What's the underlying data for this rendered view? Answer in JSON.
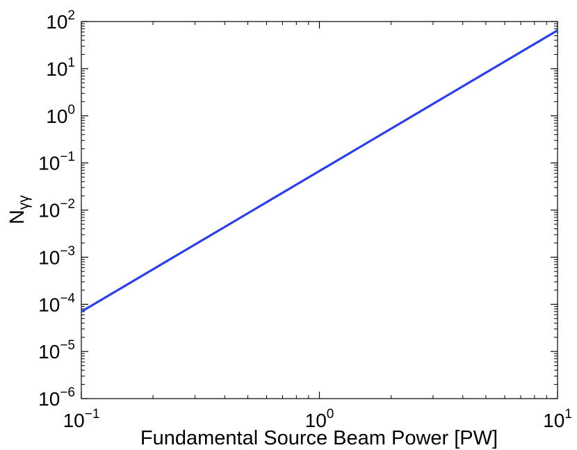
{
  "chart_data": {
    "type": "line",
    "xscale": "log",
    "yscale": "log",
    "xlim": [
      0.1,
      10
    ],
    "ylim": [
      1e-06,
      100
    ],
    "xlabel": "Fundamental Source Beam Power [PW]",
    "ylabel": {
      "main": "N",
      "sub": "γγ"
    },
    "x_ticks": [
      {
        "value": 0.1,
        "base": "10",
        "exp": "−1"
      },
      {
        "value": 1,
        "base": "10",
        "exp": "0"
      },
      {
        "value": 10,
        "base": "10",
        "exp": "1"
      }
    ],
    "y_ticks": [
      {
        "value": 1e-06,
        "base": "10",
        "exp": "−6"
      },
      {
        "value": 1e-05,
        "base": "10",
        "exp": "−5"
      },
      {
        "value": 0.0001,
        "base": "10",
        "exp": "−4"
      },
      {
        "value": 0.001,
        "base": "10",
        "exp": "−3"
      },
      {
        "value": 0.01,
        "base": "10",
        "exp": "−2"
      },
      {
        "value": 0.1,
        "base": "10",
        "exp": "−1"
      },
      {
        "value": 1,
        "base": "10",
        "exp": "0"
      },
      {
        "value": 10,
        "base": "10",
        "exp": "1"
      },
      {
        "value": 100,
        "base": "10",
        "exp": "2"
      }
    ],
    "grid": false,
    "series": [
      {
        "color": "#2a3fe8",
        "x": [
          0.1,
          10
        ],
        "y": [
          7e-05,
          65
        ]
      }
    ]
  }
}
